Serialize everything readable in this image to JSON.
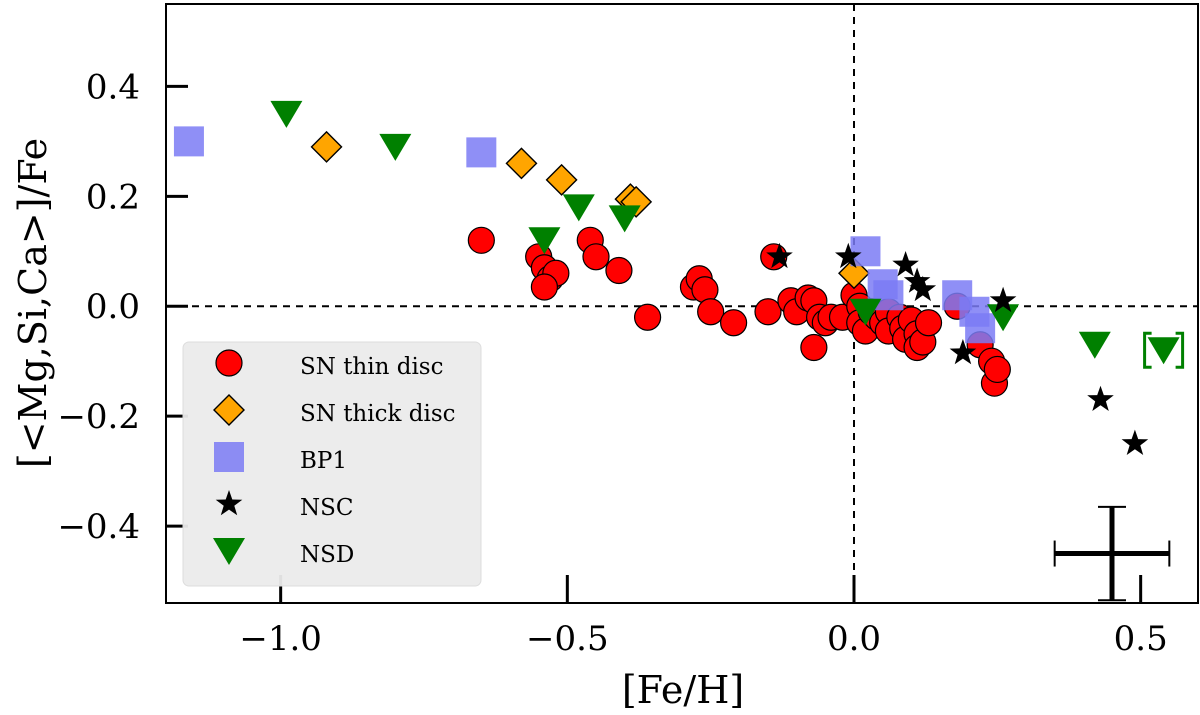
{
  "chart_data": {
    "type": "scatter",
    "title": "",
    "xlabel": "[Fe/H]",
    "ylabel": "[<Mg,Si,Ca>]/Fe",
    "xlim": [
      -1.2,
      0.6
    ],
    "ylim": [
      -0.54,
      0.55
    ],
    "xticks": [
      -1.0,
      -0.5,
      0.0,
      0.5
    ],
    "xtick_labels": [
      "−1.0",
      "−0.5",
      "0.0",
      "0.5"
    ],
    "yticks": [
      0.4,
      0.2,
      0.0,
      -0.2,
      -0.4
    ],
    "ytick_labels": [
      "0.4",
      "0.2",
      "0.0",
      "−0.2",
      "−0.4"
    ],
    "reference_lines": {
      "x": 0.0,
      "y": 0.0
    },
    "legend_position": "lower-left",
    "series": [
      {
        "name": "SN thin disc",
        "marker": "circle",
        "color": "#ff0000",
        "points": [
          [
            -0.65,
            0.12
          ],
          [
            -0.55,
            0.09
          ],
          [
            -0.54,
            0.07
          ],
          [
            -0.53,
            0.05
          ],
          [
            -0.52,
            0.06
          ],
          [
            -0.54,
            0.035
          ],
          [
            -0.46,
            0.12
          ],
          [
            -0.45,
            0.09
          ],
          [
            -0.41,
            0.065
          ],
          [
            -0.36,
            -0.02
          ],
          [
            -0.28,
            0.035
          ],
          [
            -0.27,
            0.05
          ],
          [
            -0.26,
            0.03
          ],
          [
            -0.25,
            -0.01
          ],
          [
            -0.21,
            -0.03
          ],
          [
            -0.15,
            -0.01
          ],
          [
            -0.14,
            0.09
          ],
          [
            -0.11,
            0.01
          ],
          [
            -0.1,
            -0.01
          ],
          [
            -0.08,
            0.015
          ],
          [
            -0.07,
            0.01
          ],
          [
            -0.06,
            -0.02
          ],
          [
            -0.05,
            -0.03
          ],
          [
            -0.04,
            -0.02
          ],
          [
            -0.07,
            -0.075
          ],
          [
            -0.02,
            -0.02
          ],
          [
            0.0,
            0.02
          ],
          [
            0.01,
            0.0
          ],
          [
            0.01,
            -0.03
          ],
          [
            0.02,
            -0.045
          ],
          [
            0.03,
            -0.01
          ],
          [
            0.04,
            -0.02
          ],
          [
            0.05,
            -0.03
          ],
          [
            0.06,
            -0.01
          ],
          [
            0.06,
            -0.045
          ],
          [
            0.08,
            -0.02
          ],
          [
            0.085,
            -0.04
          ],
          [
            0.09,
            -0.06
          ],
          [
            0.1,
            -0.025
          ],
          [
            0.11,
            -0.05
          ],
          [
            0.11,
            -0.075
          ],
          [
            0.12,
            -0.065
          ],
          [
            0.13,
            -0.03
          ],
          [
            0.18,
            0.0
          ],
          [
            0.22,
            -0.07
          ],
          [
            0.24,
            -0.1
          ],
          [
            0.245,
            -0.14
          ],
          [
            0.25,
            -0.115
          ]
        ]
      },
      {
        "name": "SN thick disc",
        "marker": "diamond",
        "color": "#ffa500",
        "points": [
          [
            -0.92,
            0.29
          ],
          [
            -0.58,
            0.26
          ],
          [
            -0.51,
            0.23
          ],
          [
            -0.39,
            0.195
          ],
          [
            -0.38,
            0.19
          ],
          [
            0.0,
            0.06
          ]
        ]
      },
      {
        "name": "BP1",
        "marker": "square",
        "color": "#7b7bf5",
        "points": [
          [
            -1.16,
            0.3
          ],
          [
            -0.65,
            0.28
          ],
          [
            0.02,
            0.1
          ],
          [
            0.05,
            0.04
          ],
          [
            0.06,
            0.02
          ],
          [
            0.18,
            0.02
          ],
          [
            0.21,
            -0.01
          ],
          [
            0.22,
            -0.04
          ]
        ]
      },
      {
        "name": "NSC",
        "marker": "star",
        "color": "#000000",
        "points": [
          [
            -0.13,
            0.09
          ],
          [
            -0.01,
            0.09
          ],
          [
            0.09,
            0.075
          ],
          [
            0.11,
            0.045
          ],
          [
            0.12,
            0.03
          ],
          [
            0.26,
            0.01
          ],
          [
            0.19,
            -0.085
          ],
          [
            0.43,
            -0.17
          ],
          [
            0.49,
            -0.25
          ]
        ]
      },
      {
        "name": "NSD",
        "marker": "triangle-down",
        "color": "#008000",
        "points": [
          [
            -0.99,
            0.35
          ],
          [
            -0.8,
            0.29
          ],
          [
            -0.54,
            0.12
          ],
          [
            -0.48,
            0.18
          ],
          [
            -0.4,
            0.16
          ],
          [
            0.02,
            -0.01
          ],
          [
            0.26,
            -0.02
          ],
          [
            0.42,
            -0.07
          ],
          [
            0.54,
            -0.08
          ]
        ]
      }
    ],
    "bracketed_point": {
      "series": "NSD",
      "x": 0.54,
      "y": -0.08
    },
    "error_bar": {
      "x": 0.45,
      "y": -0.45,
      "xerr": 0.1,
      "yerr": 0.085
    }
  }
}
